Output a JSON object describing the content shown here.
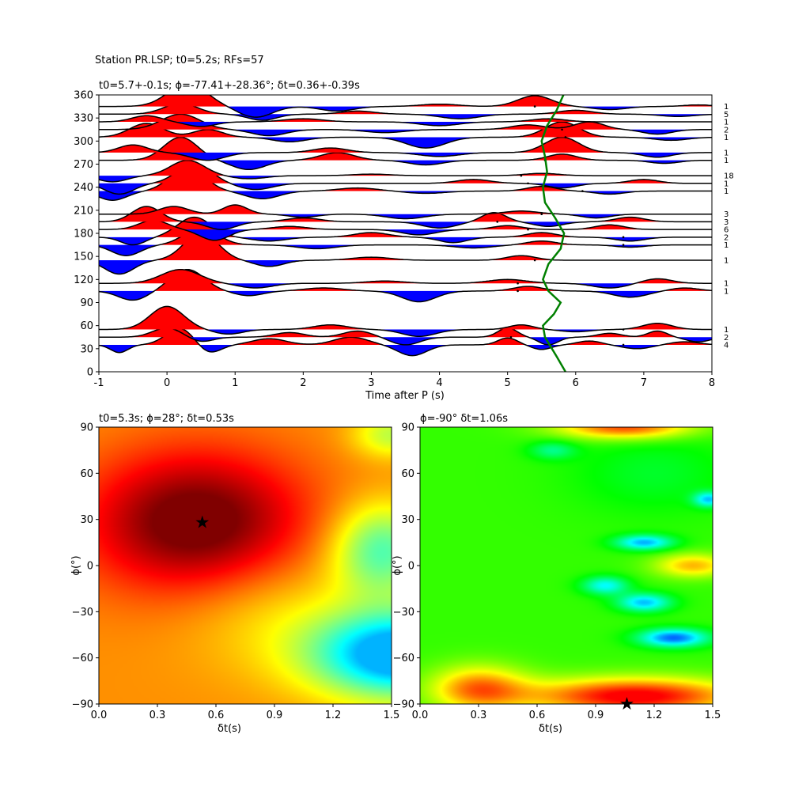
{
  "suptitle": "Station PR.LSP; t0=5.2s; RFs=57",
  "chart_data": [
    {
      "type": "line",
      "subtype": "receiver-function-wiggle",
      "title": "t0=5.7+-0.1s; ϕ=-77.41+-28.36°; δt=0.36+-0.39s",
      "xlabel": "Time after P (s)",
      "ylabel": "",
      "xlim": [
        -1,
        8
      ],
      "ylim": [
        0,
        360
      ],
      "xticks": [
        "-1",
        "0",
        "1",
        "2",
        "3",
        "4",
        "5",
        "6",
        "7",
        "8"
      ],
      "yticks": [
        "0",
        "30",
        "60",
        "90",
        "120",
        "150",
        "180",
        "210",
        "240",
        "270",
        "300",
        "330",
        "360"
      ],
      "fill_positive_color": "#ff0000",
      "fill_negative_color": "#0000ff",
      "trace_color": "#000000",
      "traces": [
        {
          "baz": 35,
          "count": "4",
          "pulses": [
            [
              -0.7,
              -10,
              0.18
            ],
            [
              0.2,
              22,
              0.3
            ],
            [
              0.6,
              -12,
              0.25
            ],
            [
              1.5,
              8,
              0.35
            ],
            [
              2.7,
              10,
              0.35
            ],
            [
              3.6,
              -14,
              0.3
            ],
            [
              5,
              9,
              0.2
            ],
            [
              5.5,
              -6,
              0.2
            ],
            [
              6.2,
              5,
              0.25
            ],
            [
              6.9,
              -5,
              0.3
            ],
            [
              7.6,
              4,
              0.3
            ]
          ]
        },
        {
          "baz": 45,
          "count": "2",
          "pulses": [
            [
              0,
              12,
              0.3
            ],
            [
              0.5,
              -6,
              0.25
            ],
            [
              1.8,
              6,
              0.3
            ],
            [
              2.8,
              8,
              0.3
            ],
            [
              3.5,
              -10,
              0.3
            ],
            [
              5,
              12,
              0.2
            ],
            [
              5.6,
              -10,
              0.2
            ],
            [
              6.5,
              5,
              0.25
            ],
            [
              7.2,
              8,
              0.2
            ],
            [
              7.8,
              -6,
              0.25
            ]
          ]
        },
        {
          "baz": 55,
          "count": "1",
          "pulses": [
            [
              0,
              30,
              0.35
            ],
            [
              0.9,
              -6,
              0.3
            ],
            [
              2.4,
              6,
              0.35
            ],
            [
              3.7,
              -9,
              0.35
            ],
            [
              5.2,
              6,
              0.25
            ],
            [
              6,
              -3,
              0.3
            ],
            [
              7.2,
              8,
              0.3
            ]
          ]
        },
        {
          "baz": 105,
          "count": "1",
          "pulses": [
            [
              -0.5,
              -12,
              0.3
            ],
            [
              0.3,
              28,
              0.35
            ],
            [
              1.2,
              -6,
              0.3
            ],
            [
              2.3,
              4,
              0.4
            ],
            [
              3.7,
              -14,
              0.35
            ],
            [
              5.3,
              6,
              0.3
            ],
            [
              6.8,
              -8,
              0.35
            ],
            [
              7.6,
              4,
              0.3
            ]
          ]
        },
        {
          "baz": 115,
          "count": "1",
          "pulses": [
            [
              0.2,
              18,
              0.4
            ],
            [
              1.3,
              -6,
              0.35
            ],
            [
              3.2,
              3,
              0.4
            ],
            [
              5,
              5,
              0.4
            ],
            [
              6.5,
              -6,
              0.35
            ],
            [
              7.2,
              6,
              0.3
            ]
          ]
        },
        {
          "baz": 145,
          "count": "1",
          "pulses": [
            [
              -0.7,
              -18,
              0.3
            ],
            [
              0.5,
              36,
              0.35
            ],
            [
              1.5,
              -8,
              0.3
            ],
            [
              3,
              4,
              0.4
            ],
            [
              5.2,
              6,
              0.3
            ]
          ]
        },
        {
          "baz": 165,
          "count": "1",
          "pulses": [
            [
              -0.6,
              -14,
              0.3
            ],
            [
              0.5,
              22,
              0.35
            ],
            [
              2.2,
              -5,
              0.4
            ],
            [
              4.5,
              -4,
              0.4
            ],
            [
              5.5,
              5,
              0.3
            ],
            [
              6.8,
              -3,
              0.3
            ]
          ]
        },
        {
          "baz": 175,
          "count": "2",
          "pulses": [
            [
              -0.5,
              -10,
              0.25
            ],
            [
              0.4,
              26,
              0.35
            ],
            [
              1.5,
              -5,
              0.35
            ],
            [
              3,
              6,
              0.35
            ],
            [
              4.2,
              -7,
              0.3
            ],
            [
              5.5,
              6,
              0.3
            ],
            [
              6.8,
              -5,
              0.3
            ]
          ]
        },
        {
          "baz": 185,
          "count": "6",
          "pulses": [
            [
              -0.2,
              12,
              0.3
            ],
            [
              0.7,
              -14,
              0.3
            ],
            [
              1.8,
              4,
              0.35
            ],
            [
              3.7,
              -7,
              0.35
            ],
            [
              5,
              5,
              0.3
            ],
            [
              6.5,
              6,
              0.3
            ]
          ]
        },
        {
          "baz": 195,
          "count": "3",
          "pulses": [
            [
              -0.3,
              20,
              0.3
            ],
            [
              0.8,
              -10,
              0.3
            ],
            [
              2,
              5,
              0.35
            ],
            [
              4,
              -8,
              0.35
            ],
            [
              4.8,
              12,
              0.25
            ],
            [
              5.6,
              -6,
              0.3
            ],
            [
              6.8,
              6,
              0.3
            ]
          ]
        },
        {
          "baz": 205,
          "count": "3",
          "pulses": [
            [
              0.1,
              10,
              0.3
            ],
            [
              1,
              12,
              0.25
            ],
            [
              2,
              -4,
              0.3
            ],
            [
              3.5,
              -6,
              0.4
            ],
            [
              5.2,
              4,
              0.35
            ],
            [
              6.3,
              -5,
              0.3
            ]
          ]
        },
        {
          "baz": 235,
          "count": "1",
          "pulses": [
            [
              -0.8,
              -12,
              0.3
            ],
            [
              0.3,
              32,
              0.35
            ],
            [
              1.4,
              -10,
              0.35
            ],
            [
              2.8,
              4,
              0.4
            ],
            [
              3.8,
              -3,
              0.4
            ],
            [
              5.5,
              6,
              0.3
            ],
            [
              6.5,
              -4,
              0.3
            ]
          ]
        },
        {
          "baz": 245,
          "count": "1",
          "pulses": [
            [
              -0.7,
              -14,
              0.3
            ],
            [
              0.4,
              26,
              0.35
            ],
            [
              1.3,
              -8,
              0.35
            ],
            [
              4.5,
              5,
              0.35
            ],
            [
              5.8,
              -6,
              0.3
            ],
            [
              7,
              5,
              0.3
            ]
          ]
        },
        {
          "baz": 255,
          "count": "18",
          "pulses": [
            [
              -0.8,
              -8,
              0.3
            ],
            [
              0.3,
              20,
              0.35
            ],
            [
              1.2,
              -4,
              0.35
            ],
            [
              3,
              2,
              0.4
            ],
            [
              5.5,
              3,
              0.35
            ]
          ]
        },
        {
          "baz": 275,
          "count": "1",
          "pulses": [
            [
              0.2,
              30,
              0.35
            ],
            [
              1.2,
              -12,
              0.35
            ],
            [
              2.5,
              10,
              0.35
            ],
            [
              3.8,
              -6,
              0.35
            ],
            [
              5.8,
              8,
              0.3
            ],
            [
              7.3,
              -4,
              0.3
            ]
          ]
        },
        {
          "baz": 285,
          "count": "1",
          "pulses": [
            [
              -0.5,
              10,
              0.3
            ],
            [
              0.6,
              -10,
              0.35
            ],
            [
              2.4,
              6,
              0.35
            ],
            [
              4,
              -5,
              0.4
            ],
            [
              5.8,
              20,
              0.35
            ],
            [
              7.2,
              -6,
              0.3
            ]
          ]
        },
        {
          "baz": 305,
          "count": "1",
          "pulses": [
            [
              -0.3,
              18,
              0.35
            ],
            [
              0.6,
              10,
              0.3
            ],
            [
              1.8,
              -6,
              0.35
            ],
            [
              3.8,
              -14,
              0.4
            ],
            [
              5.8,
              20,
              0.35
            ],
            [
              7.4,
              -4,
              0.35
            ]
          ]
        },
        {
          "baz": 315,
          "count": "2",
          "pulses": [
            [
              0.2,
              20,
              0.4
            ],
            [
              1.5,
              -8,
              0.35
            ],
            [
              3.2,
              -4,
              0.4
            ],
            [
              5.3,
              6,
              0.35
            ],
            [
              6.2,
              10,
              0.3
            ],
            [
              7.2,
              -6,
              0.3
            ]
          ]
        },
        {
          "baz": 325,
          "count": "1",
          "pulses": [
            [
              -0.3,
              8,
              0.3
            ],
            [
              0.5,
              -6,
              0.3
            ],
            [
              2,
              4,
              0.4
            ],
            [
              4,
              -5,
              0.4
            ],
            [
              5.6,
              4,
              0.35
            ]
          ]
        },
        {
          "baz": 335,
          "count": "5",
          "pulses": [
            [
              0.2,
              14,
              0.35
            ],
            [
              1.4,
              -8,
              0.3
            ],
            [
              2.8,
              4,
              0.35
            ],
            [
              4.3,
              -6,
              0.4
            ],
            [
              6,
              5,
              0.35
            ],
            [
              7.5,
              -3,
              0.35
            ]
          ]
        },
        {
          "baz": 345,
          "count": "1",
          "pulses": [
            [
              0.3,
              30,
              0.4
            ],
            [
              1.3,
              -14,
              0.35
            ],
            [
              2.5,
              -6,
              0.35
            ],
            [
              4,
              3,
              0.4
            ],
            [
              5.4,
              14,
              0.35
            ],
            [
              6.5,
              -4,
              0.35
            ],
            [
              7.8,
              2,
              0.3
            ]
          ]
        }
      ],
      "dot_marks": [
        [
          5.4,
          345
        ],
        [
          5.8,
          315
        ],
        [
          5.85,
          305
        ],
        [
          5.55,
          275
        ],
        [
          5.2,
          255
        ],
        [
          5.3,
          245
        ],
        [
          6.1,
          235
        ],
        [
          5.5,
          205
        ],
        [
          4.85,
          195
        ],
        [
          5.3,
          185
        ],
        [
          6.7,
          175
        ],
        [
          6.7,
          165
        ],
        [
          5.4,
          145
        ],
        [
          5.15,
          115
        ],
        [
          5.15,
          105
        ],
        [
          5.05,
          45
        ],
        [
          6.7,
          55
        ],
        [
          6.7,
          35
        ]
      ],
      "moveout_curve": {
        "color": "#008000",
        "points": [
          [
            5.85,
            0
          ],
          [
            5.72,
            20
          ],
          [
            5.55,
            45
          ],
          [
            5.52,
            60
          ],
          [
            5.68,
            75
          ],
          [
            5.78,
            90
          ],
          [
            5.6,
            105
          ],
          [
            5.52,
            120
          ],
          [
            5.6,
            140
          ],
          [
            5.78,
            160
          ],
          [
            5.83,
            180
          ],
          [
            5.7,
            200
          ],
          [
            5.55,
            220
          ],
          [
            5.52,
            240
          ],
          [
            5.58,
            260
          ],
          [
            5.55,
            280
          ],
          [
            5.5,
            300
          ],
          [
            5.58,
            320
          ],
          [
            5.72,
            340
          ],
          [
            5.82,
            360
          ]
        ]
      }
    },
    {
      "type": "heatmap",
      "title": "t0=5.3s; ϕ=28°; δt=0.53s",
      "xlabel": "δt(s)",
      "ylabel": "ϕ(°)",
      "xlim": [
        0,
        1.5
      ],
      "ylim": [
        -90,
        90
      ],
      "xticks": [
        "0.0",
        "0.3",
        "0.6",
        "0.9",
        "1.2",
        "1.5"
      ],
      "yticks": [
        "90",
        "60",
        "30",
        "0",
        "−30",
        "−60",
        "−90"
      ],
      "colormap": "jet",
      "best": {
        "dt": 0.53,
        "phi": 28
      }
    },
    {
      "type": "heatmap",
      "title": "ϕ=-90° δt=1.06s",
      "xlabel": "δt(s)",
      "ylabel": "ϕ(°)",
      "xlim": [
        0,
        1.5
      ],
      "ylim": [
        -90,
        90
      ],
      "xticks": [
        "0.0",
        "0.3",
        "0.6",
        "0.9",
        "1.2",
        "1.5"
      ],
      "yticks": [
        "90",
        "60",
        "30",
        "0",
        "−30",
        "−60",
        "−90"
      ],
      "colormap": "hsv",
      "best": {
        "dt": 1.06,
        "phi": -90
      }
    }
  ]
}
